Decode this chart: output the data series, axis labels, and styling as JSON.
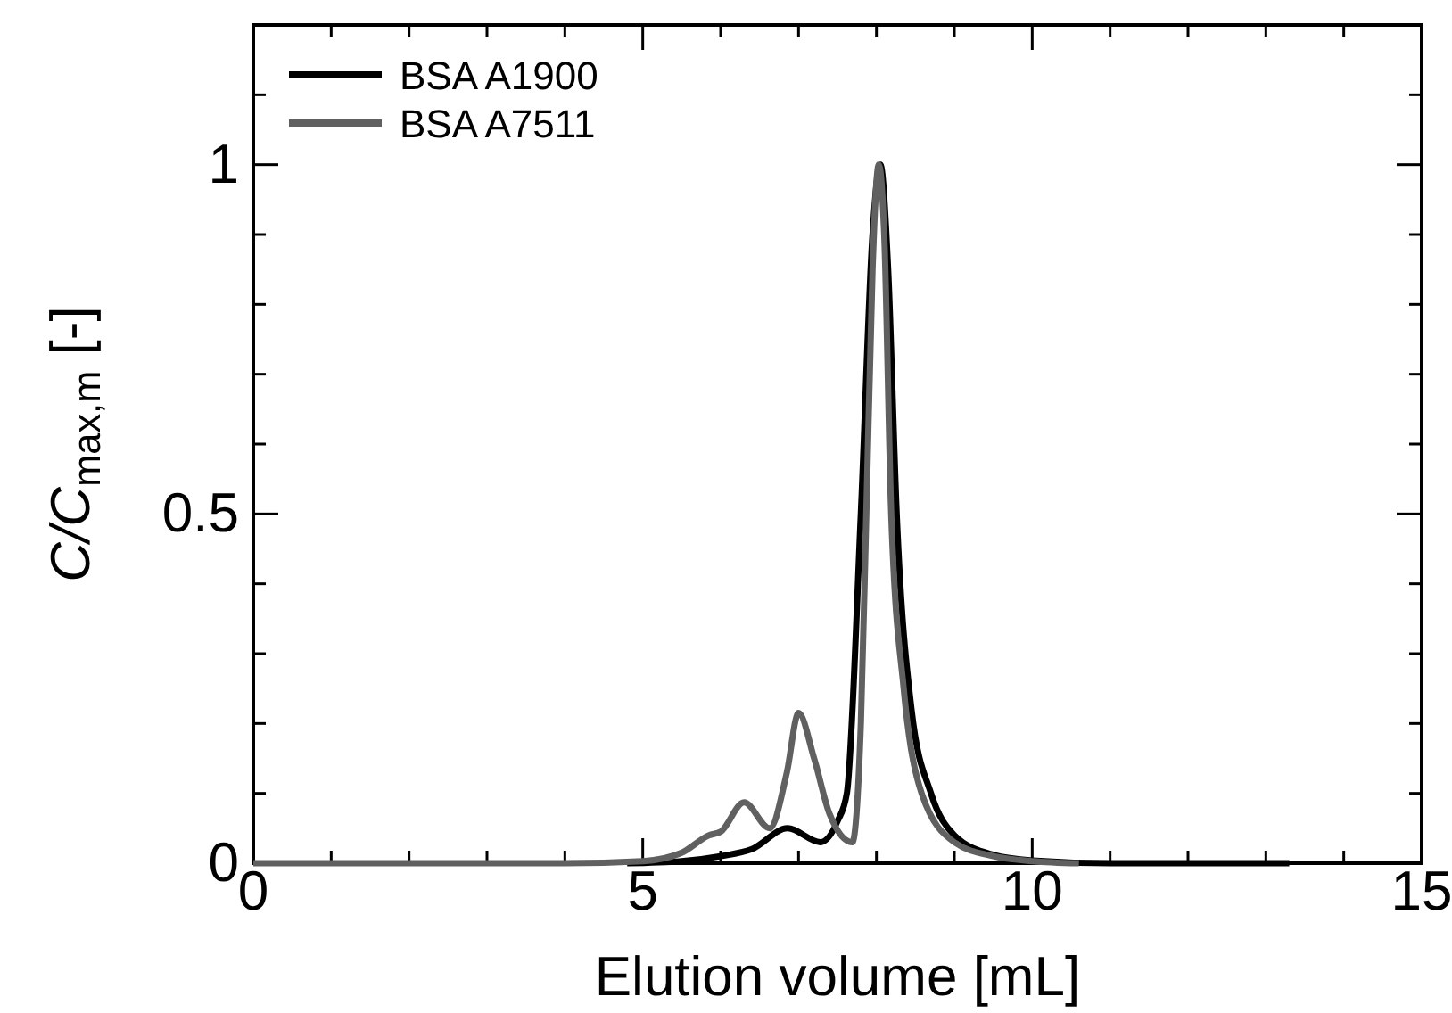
{
  "chart_data": {
    "type": "line",
    "xlabel": "Elution volume [mL]",
    "ylabel": "C/C$_{max,m}$ [-]",
    "xlim": [
      0,
      15
    ],
    "ylim": [
      0,
      1.2
    ],
    "xticks": [
      0,
      {
        "value": 1,
        "label": null
      },
      {
        "value": 2,
        "label": null
      },
      {
        "value": 3,
        "label": null
      },
      {
        "value": 4,
        "label": null
      },
      5,
      {
        "value": 6,
        "label": null
      },
      {
        "value": 7,
        "label": null
      },
      {
        "value": 8,
        "label": null
      },
      {
        "value": 9,
        "label": null
      },
      10,
      {
        "value": 11,
        "label": null
      },
      {
        "value": 12,
        "label": null
      },
      {
        "value": 13,
        "label": null
      },
      {
        "value": 14,
        "label": null
      },
      15
    ],
    "yticks": [
      0,
      {
        "value": 0.1,
        "label": null
      },
      {
        "value": 0.2,
        "label": null
      },
      {
        "value": 0.3,
        "label": null
      },
      {
        "value": 0.4,
        "label": null
      },
      0.5,
      {
        "value": 0.6,
        "label": null
      },
      {
        "value": 0.7,
        "label": null
      },
      {
        "value": 0.8,
        "label": null
      },
      {
        "value": 0.9,
        "label": null
      },
      1,
      {
        "value": 1.1,
        "label": null
      },
      {
        "value": 1.2,
        "label": null
      }
    ],
    "grid": false,
    "legend": "top left",
    "line_style": "solid",
    "marker": "none",
    "series": [
      {
        "name": "BSA A1900",
        "color": "#000000",
        "x": [
          4.8,
          5.5,
          6.0,
          6.4,
          6.86,
          7.28,
          7.5,
          7.62,
          7.8,
          7.95,
          8.05,
          8.15,
          8.26,
          8.45,
          8.7,
          9.0,
          9.5,
          10,
          11,
          13.3
        ],
        "values": [
          0,
          0.003,
          0.01,
          0.02,
          0.05,
          0.03,
          0.06,
          0.1,
          0.5,
          0.9,
          1.0,
          0.85,
          0.5,
          0.22,
          0.1,
          0.04,
          0.012,
          0.004,
          0,
          0
        ]
      },
      {
        "name": "BSA A7511",
        "color": "#606060",
        "x": [
          0,
          2,
          4,
          5,
          5.5,
          5.85,
          6.0,
          6.3,
          6.63,
          6.85,
          7.0,
          7.2,
          7.4,
          7.69,
          7.8,
          7.87,
          7.95,
          8.03,
          8.1,
          8.19,
          8.35,
          8.58,
          9.0,
          9.5,
          10.0,
          10.6
        ],
        "values": [
          0,
          0,
          0,
          0.003,
          0.015,
          0.04,
          0.045,
          0.087,
          0.05,
          0.13,
          0.215,
          0.15,
          0.07,
          0.03,
          0.2,
          0.5,
          0.85,
          1.0,
          0.9,
          0.5,
          0.25,
          0.1,
          0.03,
          0.01,
          0.003,
          0
        ]
      }
    ]
  }
}
